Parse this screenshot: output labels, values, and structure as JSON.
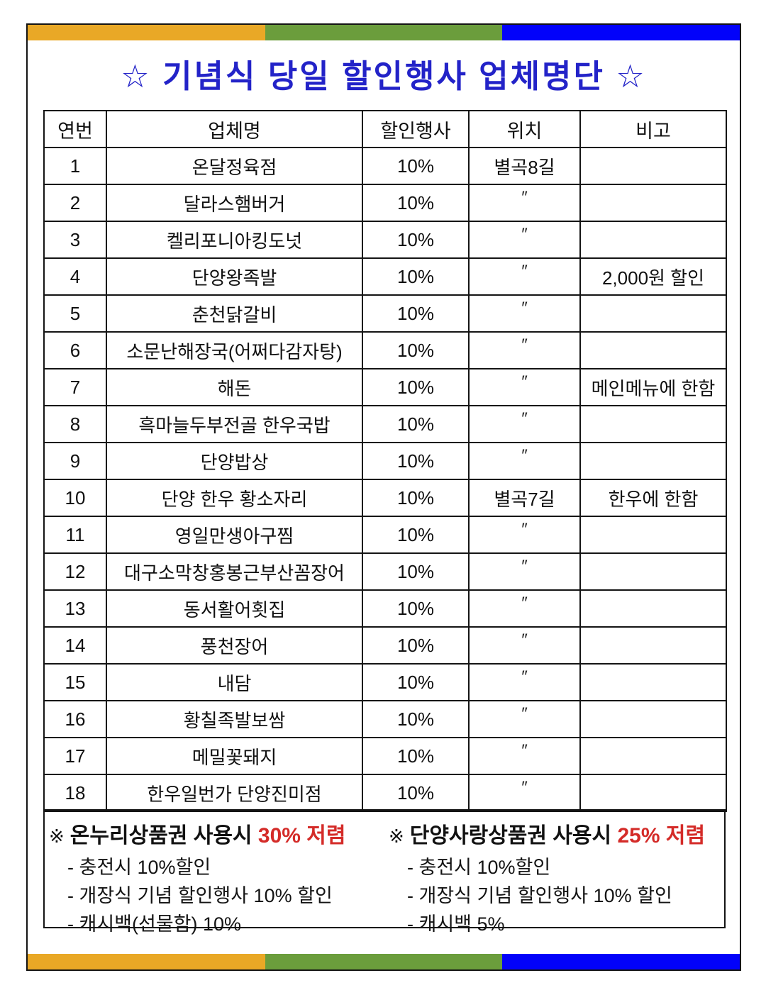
{
  "title": "☆ 기념식  당일  할인행사  업체명단 ☆",
  "colors": {
    "bar_orange": "#e9a826",
    "bar_green": "#6b9d3c",
    "bar_blue": "#0202fa",
    "title_blue": "#2323c8",
    "highlight_red": "#d42b28"
  },
  "table": {
    "headers": [
      "연번",
      "업체명",
      "할인행사",
      "위치",
      "비고"
    ],
    "rows": [
      [
        "1",
        "온달정육점",
        "10%",
        "별곡8길",
        ""
      ],
      [
        "2",
        "달라스햄버거",
        "10%",
        "″",
        ""
      ],
      [
        "3",
        "켈리포니아킹도넛",
        "10%",
        "″",
        ""
      ],
      [
        "4",
        "단양왕족발",
        "10%",
        "″",
        "2,000원 할인"
      ],
      [
        "5",
        "춘천닭갈비",
        "10%",
        "″",
        ""
      ],
      [
        "6",
        "소문난해장국(어쩌다감자탕)",
        "10%",
        "″",
        ""
      ],
      [
        "7",
        "해돈",
        "10%",
        "″",
        "메인메뉴에 한함"
      ],
      [
        "8",
        "흑마늘두부전골 한우국밥",
        "10%",
        "″",
        ""
      ],
      [
        "9",
        "단양밥상",
        "10%",
        "″",
        ""
      ],
      [
        "10",
        "단양 한우 황소자리",
        "10%",
        "별곡7길",
        "한우에 한함"
      ],
      [
        "11",
        "영일만생아구찜",
        "10%",
        "″",
        ""
      ],
      [
        "12",
        "대구소막창홍봉근부산꼼장어",
        "10%",
        "″",
        ""
      ],
      [
        "13",
        "동서활어횟집",
        "10%",
        "″",
        ""
      ],
      [
        "14",
        "풍천장어",
        "10%",
        "″",
        ""
      ],
      [
        "15",
        "내담",
        "10%",
        "″",
        ""
      ],
      [
        "16",
        "황칠족발보쌈",
        "10%",
        "″",
        ""
      ],
      [
        "17",
        "메밀꽃돼지",
        "10%",
        "″",
        ""
      ],
      [
        "18",
        "한우일번가 단양진미점",
        "10%",
        "″",
        ""
      ]
    ]
  },
  "notes": {
    "left": {
      "prefix": "※",
      "heading": "온누리상품권 사용시",
      "highlight": "30% 저렴",
      "items": [
        "- 충전시 10%할인",
        "- 개장식 기념 할인행사 10% 할인",
        "- 캐시백(선물함) 10%"
      ]
    },
    "right": {
      "prefix": "※",
      "heading": "단양사랑상품권 사용시",
      "highlight": "25% 저렴",
      "items": [
        "- 충전시 10%할인",
        "- 개장식 기념 할인행사 10% 할인",
        "- 캐시백 5%"
      ]
    }
  }
}
